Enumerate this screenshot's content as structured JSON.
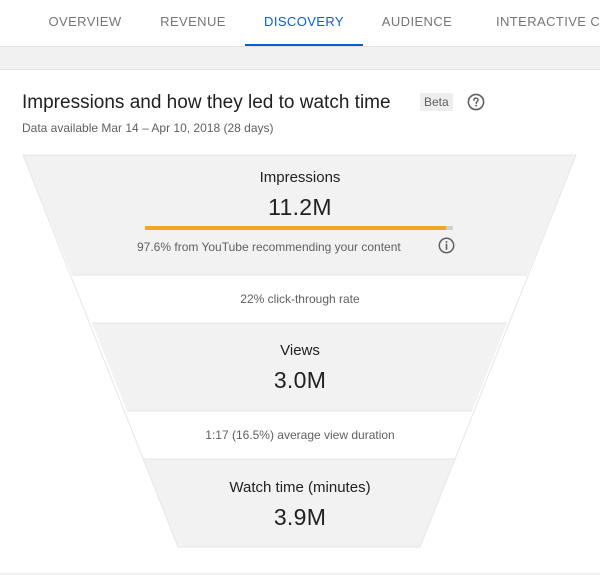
{
  "tabs": [
    {
      "label": "OVERVIEW"
    },
    {
      "label": "REVENUE"
    },
    {
      "label": "DISCOVERY"
    },
    {
      "label": "AUDIENCE"
    },
    {
      "label": "INTERACTIVE CON"
    }
  ],
  "card": {
    "title": "Impressions and how they led to watch time",
    "badge": "Beta",
    "subtitle": "Data available Mar 14 – Apr 10, 2018 (28 days)"
  },
  "funnel": {
    "impressions": {
      "label": "Impressions",
      "value": "11.2M",
      "note": "97.6% from YouTube recommending your content",
      "recommended_fraction": 0.976
    },
    "ctr_note": "22% click-through rate",
    "views": {
      "label": "Views",
      "value": "3.0M"
    },
    "avd_note": "1:17 (16.5%) average view duration",
    "watch_time": {
      "label": "Watch time (minutes)",
      "value": "3.9M"
    }
  },
  "colors": {
    "accent": "#065fd4",
    "bar_fill": "#f4a623",
    "bar_track": "#cfcfcf",
    "stage_bg": "#f2f2f2"
  },
  "icons": {
    "help": "question-circle-icon",
    "info": "info-circle-icon"
  }
}
